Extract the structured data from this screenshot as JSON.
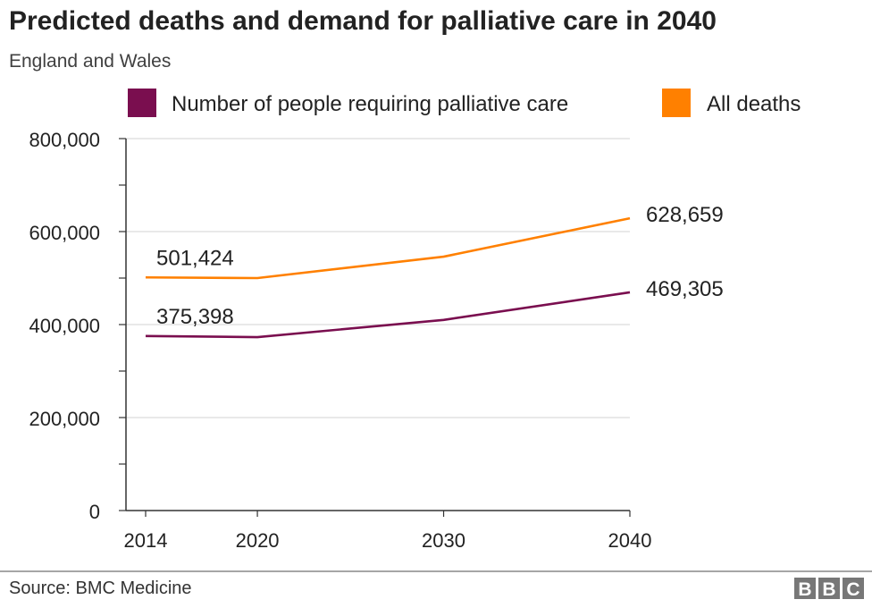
{
  "chart_data": {
    "type": "line",
    "title": "Predicted deaths and demand for palliative care in 2040",
    "subtitle": "England and Wales",
    "x": [
      2014,
      2020,
      2030,
      2040
    ],
    "x_tick_labels": [
      "2014",
      "2020",
      "2030",
      "2040"
    ],
    "y_tick_labels": [
      "0",
      "200,000",
      "400,000",
      "600,000",
      "800,000"
    ],
    "y_ticks": [
      0,
      200000,
      400000,
      600000,
      800000
    ],
    "ylim": [
      0,
      800000
    ],
    "xlim": [
      2014,
      2040
    ],
    "grid": "horizontal",
    "legend_placement": "top",
    "series": [
      {
        "name": "Number of people requiring palliative care",
        "color": "#7a0e4f",
        "values": [
          375398,
          373000,
          410000,
          469305
        ],
        "labels": [
          {
            "index": 0,
            "text": "375,398"
          },
          {
            "index": 3,
            "text": "469,305"
          }
        ]
      },
      {
        "name": "All deaths",
        "color": "#ff8000",
        "values": [
          501424,
          500000,
          546000,
          628659
        ],
        "labels": [
          {
            "index": 0,
            "text": "501,424"
          },
          {
            "index": 3,
            "text": "628,659"
          }
        ]
      }
    ],
    "source": "Source: BMC Medicine",
    "logo": "BBC"
  }
}
